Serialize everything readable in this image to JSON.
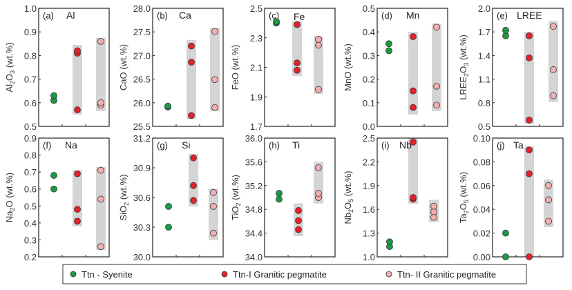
{
  "chart_data": {
    "type": "scatter",
    "title": "",
    "colors": {
      "syenite": "#1a9a45",
      "ttn1": "#e8202a",
      "ttn2": "#f4b0b0",
      "band": "#d4d4d4",
      "marker_edge": "#333333",
      "axis": "#222222"
    },
    "legend": {
      "placement": "bottom",
      "entries": [
        {
          "key": "syenite",
          "label": "Ttn - Syenite"
        },
        {
          "key": "ttn1",
          "label": "Ttn-I Granitic pegmatite"
        },
        {
          "key": "ttn2",
          "label": "Ttn- II Granitic pegmatite"
        }
      ]
    },
    "x_categories": [
      "Ttn - Syenite",
      "Ttn-I Granitic pegmatite",
      "Ttn- II Granitic pegmatite"
    ],
    "panels": [
      {
        "letter": "(a)",
        "element": "Al",
        "ylabel_parts": [
          [
            "Al",
            ""
          ],
          [
            "2",
            "sub"
          ],
          [
            "O",
            ""
          ],
          [
            "3",
            "sub"
          ],
          [
            " (wt.%)",
            ""
          ]
        ],
        "ylim": [
          0.5,
          1.0
        ],
        "yticks": [
          "0.5",
          "0.6",
          "0.7",
          "0.8",
          "0.9",
          "1.0"
        ],
        "series": {
          "syenite": [
            0.61,
            0.63
          ],
          "ttn1": [
            0.57,
            0.81,
            0.82
          ],
          "ttn2": [
            0.59,
            0.6,
            0.86
          ]
        },
        "bands": {
          "ttn1": [
            0.55,
            0.845
          ],
          "ttn2": [
            0.565,
            0.875
          ]
        }
      },
      {
        "letter": "(b)",
        "element": "Ca",
        "ylabel_parts": [
          [
            "CaO (wt.%)",
            ""
          ]
        ],
        "ylim": [
          25.5,
          28.0
        ],
        "yticks": [
          "25.5",
          "26.0",
          "26.5",
          "27.0",
          "27.5",
          "28.0"
        ],
        "series": {
          "syenite": [
            25.91,
            25.93
          ],
          "ttn1": [
            25.73,
            26.86,
            27.2
          ],
          "ttn2": [
            25.9,
            26.49,
            27.51
          ]
        },
        "bands": {
          "ttn1": [
            25.66,
            27.33
          ],
          "ttn2": [
            25.82,
            27.58
          ]
        }
      },
      {
        "letter": "(c)",
        "element": "Fe",
        "ylabel_parts": [
          [
            "FeO (wt.%)",
            ""
          ]
        ],
        "ylim": [
          1.7,
          2.5
        ],
        "yticks": [
          "1.7",
          "1.9",
          "2.1",
          "2.3",
          "2.5"
        ],
        "series": {
          "syenite": [
            2.4,
            2.41
          ],
          "ttn1": [
            2.08,
            2.13,
            2.39
          ],
          "ttn2": [
            1.95,
            2.25,
            2.29
          ]
        },
        "bands": {
          "ttn1": [
            2.04,
            2.41
          ],
          "ttn2": [
            1.92,
            2.31
          ]
        }
      },
      {
        "letter": "(d)",
        "element": "Mn",
        "ylabel_parts": [
          [
            "MnO (wt.%)",
            ""
          ]
        ],
        "ylim": [
          0.0,
          0.5
        ],
        "yticks": [
          "0.0",
          "0.1",
          "0.2",
          "0.3",
          "0.4",
          "0.5"
        ],
        "series": {
          "syenite": [
            0.32,
            0.35
          ],
          "ttn1": [
            0.08,
            0.15,
            0.38
          ],
          "ttn2": [
            0.09,
            0.17,
            0.42
          ]
        },
        "bands": {
          "ttn1": [
            0.05,
            0.4
          ],
          "ttn2": [
            0.065,
            0.435
          ]
        }
      },
      {
        "letter": "(e)",
        "element": "LREE",
        "ylabel_parts": [
          [
            "LREE",
            ""
          ],
          [
            "2",
            "sub"
          ],
          [
            "O",
            ""
          ],
          [
            "3",
            "sub"
          ],
          [
            " (wt.%)",
            ""
          ]
        ],
        "ylim": [
          0.5,
          2.0
        ],
        "yticks": [
          "0.5",
          "0.8",
          "1.1",
          "1.4",
          "1.7",
          "2.0"
        ],
        "series": {
          "syenite": [
            1.65,
            1.72
          ],
          "ttn1": [
            0.58,
            1.37,
            1.65
          ],
          "ttn2": [
            0.89,
            1.22,
            1.77
          ]
        },
        "bands": {
          "ttn1": [
            0.53,
            1.7
          ],
          "ttn2": [
            0.81,
            1.84
          ]
        }
      },
      {
        "letter": "(f)",
        "element": "Na",
        "ylabel_parts": [
          [
            "Na",
            ""
          ],
          [
            "2",
            "sub"
          ],
          [
            "O (wt.%)",
            ""
          ]
        ],
        "ylim": [
          0.2,
          0.9
        ],
        "yticks": [
          "0.2",
          "0.3",
          "0.4",
          "0.5",
          "0.6",
          "0.7",
          "0.8",
          "0.9"
        ],
        "series": {
          "syenite": [
            0.6,
            0.68
          ],
          "ttn1": [
            0.41,
            0.48,
            0.69
          ],
          "ttn2": [
            0.26,
            0.54,
            0.71
          ]
        },
        "bands": {
          "ttn1": [
            0.38,
            0.71
          ],
          "ttn2": [
            0.24,
            0.73
          ]
        }
      },
      {
        "letter": "(g)",
        "element": "Si",
        "ylabel_parts": [
          [
            "SiO",
            ""
          ],
          [
            "2",
            "sub"
          ],
          [
            " (wt.%)",
            ""
          ]
        ],
        "ylim": [
          30.0,
          31.2
        ],
        "yticks": [
          "30.0",
          "30.3",
          "30.6",
          "30.9",
          "31.2"
        ],
        "series": {
          "syenite": [
            30.3,
            30.51
          ],
          "ttn1": [
            30.57,
            30.72,
            31.0
          ],
          "ttn2": [
            30.24,
            30.51,
            30.65
          ]
        },
        "bands": {
          "ttn1": [
            30.51,
            31.04
          ],
          "ttn2": [
            30.17,
            30.69
          ]
        }
      },
      {
        "letter": "(h)",
        "element": "Ti",
        "ylabel_parts": [
          [
            "TiO",
            ""
          ],
          [
            "2",
            "sub"
          ],
          [
            " (wt.%)",
            ""
          ]
        ],
        "ylim": [
          34.0,
          36.0
        ],
        "yticks": [
          "34.0",
          "34.4",
          "34.8",
          "35.2",
          "35.6",
          "36.0"
        ],
        "series": {
          "syenite": [
            34.97,
            35.07
          ],
          "ttn1": [
            34.46,
            34.61,
            34.78
          ],
          "ttn2": [
            35.0,
            35.07,
            35.5
          ]
        },
        "bands": {
          "ttn1": [
            34.35,
            34.9
          ],
          "ttn2": [
            34.9,
            35.6
          ]
        }
      },
      {
        "letter": "(i)",
        "element": "Nb",
        "ylabel_parts": [
          [
            "Nb",
            ""
          ],
          [
            "2",
            "sub"
          ],
          [
            "O",
            ""
          ],
          [
            "5",
            "sub"
          ],
          [
            " (wt.%)",
            ""
          ]
        ],
        "ylim": [
          1.0,
          2.5
        ],
        "yticks": [
          "1.0",
          "1.3",
          "1.6",
          "1.9",
          "2.2",
          "2.5"
        ],
        "series": {
          "syenite": [
            1.13,
            1.19
          ],
          "ttn1": [
            1.73,
            1.75,
            2.45
          ],
          "ttn2": [
            1.5,
            1.57,
            1.64
          ]
        },
        "bands": {
          "ttn1": [
            1.67,
            2.5
          ],
          "ttn2": [
            1.44,
            1.72
          ]
        }
      },
      {
        "letter": "(j)",
        "element": "Ta",
        "ylabel_parts": [
          [
            "Ta",
            ""
          ],
          [
            "2",
            "sub"
          ],
          [
            "O",
            ""
          ],
          [
            "5",
            "sub"
          ],
          [
            " (wt.%)",
            ""
          ]
        ],
        "ylim": [
          0.0,
          0.1
        ],
        "yticks": [
          "0.00",
          "0.02",
          "0.04",
          "0.06",
          "0.08",
          "0.10"
        ],
        "series": {
          "syenite": [
            0.0,
            0.02
          ],
          "ttn1": [
            0.0,
            0.07,
            0.09
          ],
          "ttn2": [
            0.03,
            0.048,
            0.06
          ]
        },
        "bands": {
          "ttn1": [
            0.0,
            0.093
          ],
          "ttn2": [
            0.025,
            0.065
          ]
        }
      }
    ]
  }
}
